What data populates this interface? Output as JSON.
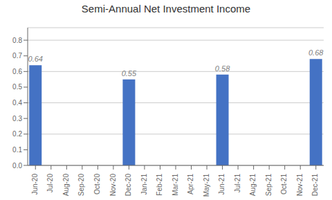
{
  "chart_data": {
    "type": "bar",
    "title": "Semi-Annual Net Investment Income",
    "categories": [
      "Jun-20",
      "Jul-20",
      "Aug-20",
      "Sep-20",
      "Oct-20",
      "Nov-20",
      "Dec-20",
      "Jan-21",
      "Feb-21",
      "Mar-21",
      "Apr-21",
      "May-21",
      "Jun-21",
      "Jul-21",
      "Aug-21",
      "Sep-21",
      "Oct-21",
      "Nov-21",
      "Dec-21"
    ],
    "values": [
      0.64,
      0,
      0,
      0,
      0,
      0,
      0.55,
      0,
      0,
      0,
      0,
      0,
      0.58,
      0,
      0,
      0,
      0,
      0,
      0.68
    ],
    "data_labels": true,
    "value_labels": [
      "0.64",
      null,
      null,
      null,
      null,
      null,
      "0.55",
      null,
      null,
      null,
      null,
      null,
      "0.58",
      null,
      null,
      null,
      null,
      null,
      "0.68"
    ],
    "color": "#4472C4",
    "ylim": [
      0,
      0.88
    ],
    "yticks": [
      {
        "value": 0,
        "label": "0.0"
      },
      0.1,
      0.2,
      0.3,
      0.4,
      0.5,
      0.6,
      0.7,
      0.8
    ],
    "grid": true
  }
}
